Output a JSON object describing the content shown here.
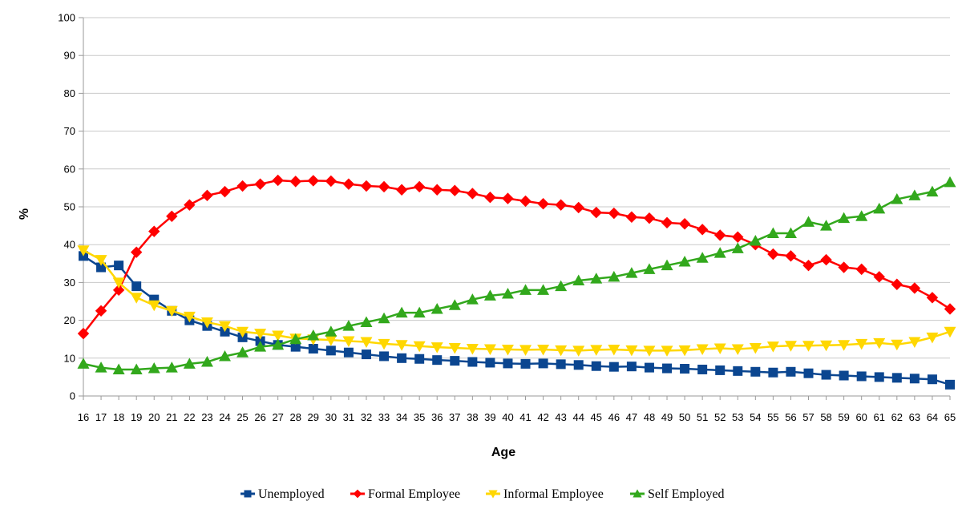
{
  "chart_data": {
    "type": "line",
    "xlabel": "Age",
    "ylabel": "%",
    "ylim": [
      0,
      100
    ],
    "yticks": [
      0,
      10,
      20,
      30,
      40,
      50,
      60,
      70,
      80,
      90,
      100
    ],
    "grid": true,
    "legend_position": "bottom",
    "x": [
      16,
      17,
      18,
      19,
      20,
      21,
      22,
      23,
      24,
      25,
      26,
      27,
      28,
      29,
      30,
      31,
      32,
      33,
      34,
      35,
      36,
      37,
      38,
      39,
      40,
      41,
      42,
      43,
      44,
      45,
      46,
      47,
      48,
      49,
      50,
      51,
      52,
      53,
      54,
      55,
      56,
      57,
      58,
      59,
      60,
      61,
      62,
      63,
      64,
      65
    ],
    "series": [
      {
        "name": "Unemployed",
        "color": "#0b4690",
        "marker": "square",
        "values": [
          37,
          34,
          34.5,
          29,
          25.5,
          22.5,
          20,
          18.5,
          17,
          15.5,
          14.5,
          13.5,
          13,
          12.5,
          12,
          11.5,
          11,
          10.5,
          10,
          9.8,
          9.5,
          9.3,
          9,
          8.8,
          8.6,
          8.5,
          8.6,
          8.4,
          8.2,
          7.9,
          7.7,
          7.8,
          7.5,
          7.3,
          7.2,
          7,
          6.8,
          6.6,
          6.4,
          6.2,
          6.4,
          6,
          5.6,
          5.4,
          5.2,
          5,
          4.8,
          4.6,
          4.4,
          3
        ]
      },
      {
        "name": "Formal Employee",
        "color": "#ff0000",
        "marker": "diamond",
        "values": [
          16.5,
          22.5,
          28,
          38,
          43.5,
          47.5,
          50.5,
          53,
          54,
          55.5,
          56,
          57,
          56.7,
          56.9,
          56.8,
          56,
          55.5,
          55.3,
          54.5,
          55.3,
          54.5,
          54.3,
          53.5,
          52.5,
          52.2,
          51.5,
          50.8,
          50.5,
          49.8,
          48.5,
          48.3,
          47.3,
          47,
          45.8,
          45.5,
          44,
          42.5,
          42,
          40,
          37.5,
          37,
          34.5,
          36,
          34,
          33.5,
          31.5,
          29.5,
          28.5,
          26,
          23
        ]
      },
      {
        "name": "Informal Employee",
        "color": "#ffd700",
        "marker": "triangle-down",
        "values": [
          38.5,
          36,
          30,
          26,
          24,
          22.5,
          21,
          19.5,
          18.5,
          17,
          16.5,
          16,
          15.2,
          15,
          14.8,
          14.5,
          14.3,
          13.8,
          13.5,
          13.2,
          12.9,
          12.7,
          12.5,
          12.4,
          12.3,
          12.2,
          12.3,
          12.1,
          12,
          12.2,
          12.3,
          12.1,
          12,
          12,
          12.1,
          12.4,
          12.6,
          12.4,
          12.7,
          13.1,
          13.3,
          13.3,
          13.4,
          13.5,
          13.8,
          14,
          13.6,
          14.3,
          15.5,
          17
        ]
      },
      {
        "name": "Self Employed",
        "color": "#32a81c",
        "marker": "triangle-up",
        "values": [
          8.5,
          7.5,
          7,
          7,
          7.3,
          7.5,
          8.5,
          9,
          10.5,
          11.5,
          13,
          13.5,
          15,
          16,
          17,
          18.5,
          19.5,
          20.5,
          22,
          22,
          23,
          24,
          25.5,
          26.5,
          27,
          28,
          28,
          29,
          30.5,
          31,
          31.5,
          32.5,
          33.5,
          34.5,
          35.5,
          36.5,
          37.8,
          39,
          41,
          43,
          43,
          46,
          45,
          47,
          47.5,
          49.5,
          52,
          53,
          54,
          56.5
        ]
      }
    ],
    "legend": [
      "Unemployed",
      "Formal Employee",
      "Informal Employee",
      "Self Employed"
    ]
  }
}
